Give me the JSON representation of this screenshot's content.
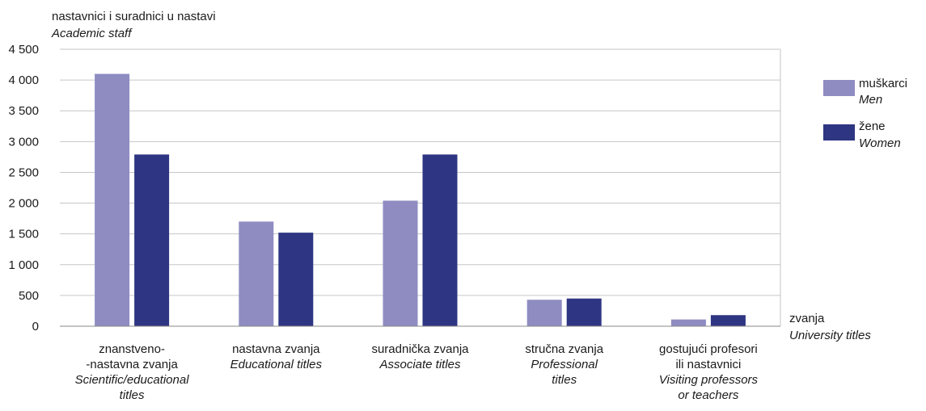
{
  "chart_data": {
    "type": "bar",
    "ylabel_top": "nastavnici i suradnici u nastavi",
    "ylabel_bottom": "Academic staff",
    "xlabel_top": "zvanja",
    "xlabel_bottom": "University titles",
    "ylim": [
      0,
      4500
    ],
    "yticks": [
      0,
      500,
      1000,
      1500,
      2000,
      2500,
      3000,
      3500,
      4000,
      4500
    ],
    "ytick_labels": [
      "0",
      "500",
      "1 000",
      "1 500",
      "2 000",
      "2 500",
      "3 000",
      "3 500",
      "4 000",
      "4 500"
    ],
    "grid": true,
    "legend_position": "right",
    "categories": [
      {
        "lines": [
          "znanstveno-",
          "-nastavna zvanja"
        ],
        "lines_italic": [
          "Scientific/educational",
          "titles"
        ]
      },
      {
        "lines": [
          "nastavna zvanja"
        ],
        "lines_italic": [
          "Educational titles"
        ]
      },
      {
        "lines": [
          "suradnička zvanja"
        ],
        "lines_italic": [
          "Associate titles"
        ]
      },
      {
        "lines": [
          "stručna zvanja"
        ],
        "lines_italic": [
          "Professional",
          "titles"
        ]
      },
      {
        "lines": [
          "gostujući profesori",
          "ili nastavnici"
        ],
        "lines_italic": [
          "Visiting professors",
          "or teachers"
        ]
      }
    ],
    "series": [
      {
        "name": "muškarci",
        "name_en": "Men",
        "color": "#8f8cc2",
        "values": [
          4100,
          1700,
          2040,
          430,
          110
        ]
      },
      {
        "name": "žene",
        "name_en": "Women",
        "color": "#2e3582",
        "values": [
          2790,
          1520,
          2790,
          450,
          180
        ]
      }
    ]
  }
}
